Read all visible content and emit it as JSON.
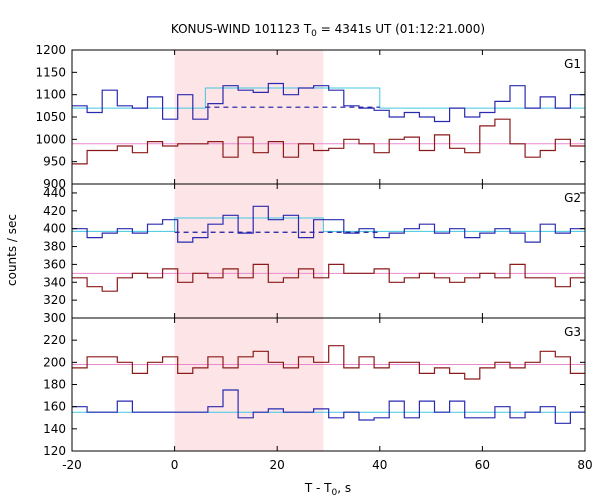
{
  "chart_data": {
    "type": "line",
    "title": "KONUS-WIND 101123 T",
    "title_sub": "0",
    "title_rest": " = 4341s UT (01:12:21.000)",
    "xlabel": "T - T",
    "xlabel_sub": "0",
    "xlabel_rest": ", s",
    "ylabel": "counts / sec",
    "xlim": [
      -20,
      80
    ],
    "xticks": [
      -20,
      0,
      20,
      40,
      60,
      80
    ],
    "xtick_labels": [
      "-20",
      "0",
      "20",
      "40",
      "60",
      "80"
    ],
    "bin_width": 2.944,
    "x_start": -20,
    "highlight_range": [
      0,
      29
    ],
    "colors": {
      "red_series": "#8b1a1a",
      "blue_series": "#2a2ab0",
      "pink_fit": "#e98ad0",
      "cyan_fit": "#40c8e0",
      "blue_dash": "#1a1aa0",
      "highlight": "#fde4e6"
    },
    "panels": [
      {
        "name": "G1",
        "ylim": [
          900,
          1200
        ],
        "yticks": [
          900,
          950,
          1000,
          1050,
          1100,
          1150,
          1200
        ],
        "ytick_labels": [
          "900",
          "950",
          "1000",
          "1050",
          "1100",
          "1150",
          "1200"
        ],
        "hide_top_tick": false,
        "series_blue": [
          1075,
          1060,
          1110,
          1075,
          1070,
          1095,
          1045,
          1100,
          1045,
          1080,
          1120,
          1110,
          1105,
          1125,
          1100,
          1115,
          1120,
          1110,
          1075,
          1070,
          1065,
          1050,
          1060,
          1050,
          1040,
          1070,
          1050,
          1060,
          1085,
          1120,
          1070,
          1095,
          1070,
          1100
        ],
        "series_red": [
          945,
          975,
          975,
          985,
          970,
          995,
          985,
          990,
          990,
          995,
          960,
          1005,
          970,
          995,
          960,
          990,
          975,
          980,
          1000,
          990,
          970,
          1000,
          1005,
          975,
          1010,
          980,
          970,
          1030,
          1045,
          990,
          960,
          975,
          1000,
          985,
          980,
          1010
        ],
        "fit_blue": 1070,
        "fit_red": 990,
        "blue_dash_level": 1072,
        "blue_dash_range": [
          6,
          40
        ],
        "fit_blue_step": {
          "x": [
            6,
            40
          ],
          "value": 1115
        }
      },
      {
        "name": "G2",
        "ylim": [
          300,
          450
        ],
        "yticks": [
          300,
          320,
          340,
          360,
          380,
          400,
          420,
          440
        ],
        "ytick_labels": [
          "300",
          "320",
          "340",
          "360",
          "380",
          "400",
          "420",
          "440"
        ],
        "hide_top_tick": true,
        "series_blue": [
          400,
          390,
          395,
          400,
          395,
          405,
          410,
          385,
          390,
          405,
          415,
          395,
          425,
          410,
          415,
          390,
          410,
          410,
          395,
          400,
          390,
          395,
          400,
          405,
          395,
          400,
          390,
          395,
          400,
          395,
          385,
          405,
          395,
          400
        ],
        "series_red": [
          345,
          335,
          330,
          345,
          350,
          345,
          355,
          340,
          350,
          345,
          355,
          345,
          360,
          340,
          345,
          355,
          345,
          360,
          350,
          350,
          355,
          340,
          345,
          350,
          345,
          340,
          345,
          350,
          345,
          360,
          345,
          345,
          335,
          345,
          345,
          345
        ],
        "fit_blue": 397,
        "fit_red": 350,
        "blue_dash_level": 396,
        "blue_dash_range": [
          0,
          40
        ],
        "fit_blue_step": {
          "x": [
            0,
            29
          ],
          "value": 412
        }
      },
      {
        "name": "G3",
        "ylim": [
          120,
          240
        ],
        "yticks": [
          120,
          140,
          160,
          180,
          200,
          220
        ],
        "ytick_labels": [
          "120",
          "140",
          "160",
          "180",
          "200",
          "220"
        ],
        "hide_top_tick": true,
        "series_blue": [
          160,
          155,
          155,
          165,
          155,
          155,
          155,
          155,
          155,
          160,
          175,
          150,
          155,
          158,
          155,
          155,
          158,
          150,
          155,
          148,
          150,
          165,
          150,
          165,
          155,
          165,
          150,
          150,
          160,
          150,
          155,
          160,
          145,
          155
        ],
        "series_red": [
          195,
          205,
          205,
          200,
          190,
          200,
          205,
          190,
          195,
          205,
          195,
          205,
          210,
          200,
          195,
          205,
          200,
          215,
          195,
          205,
          195,
          200,
          200,
          190,
          195,
          190,
          185,
          195,
          200,
          195,
          200,
          210,
          205,
          190,
          200,
          185
        ],
        "fit_blue": 155,
        "fit_red": 198,
        "blue_dash_level": null,
        "blue_dash_range": null,
        "fit_blue_step": null
      }
    ]
  }
}
